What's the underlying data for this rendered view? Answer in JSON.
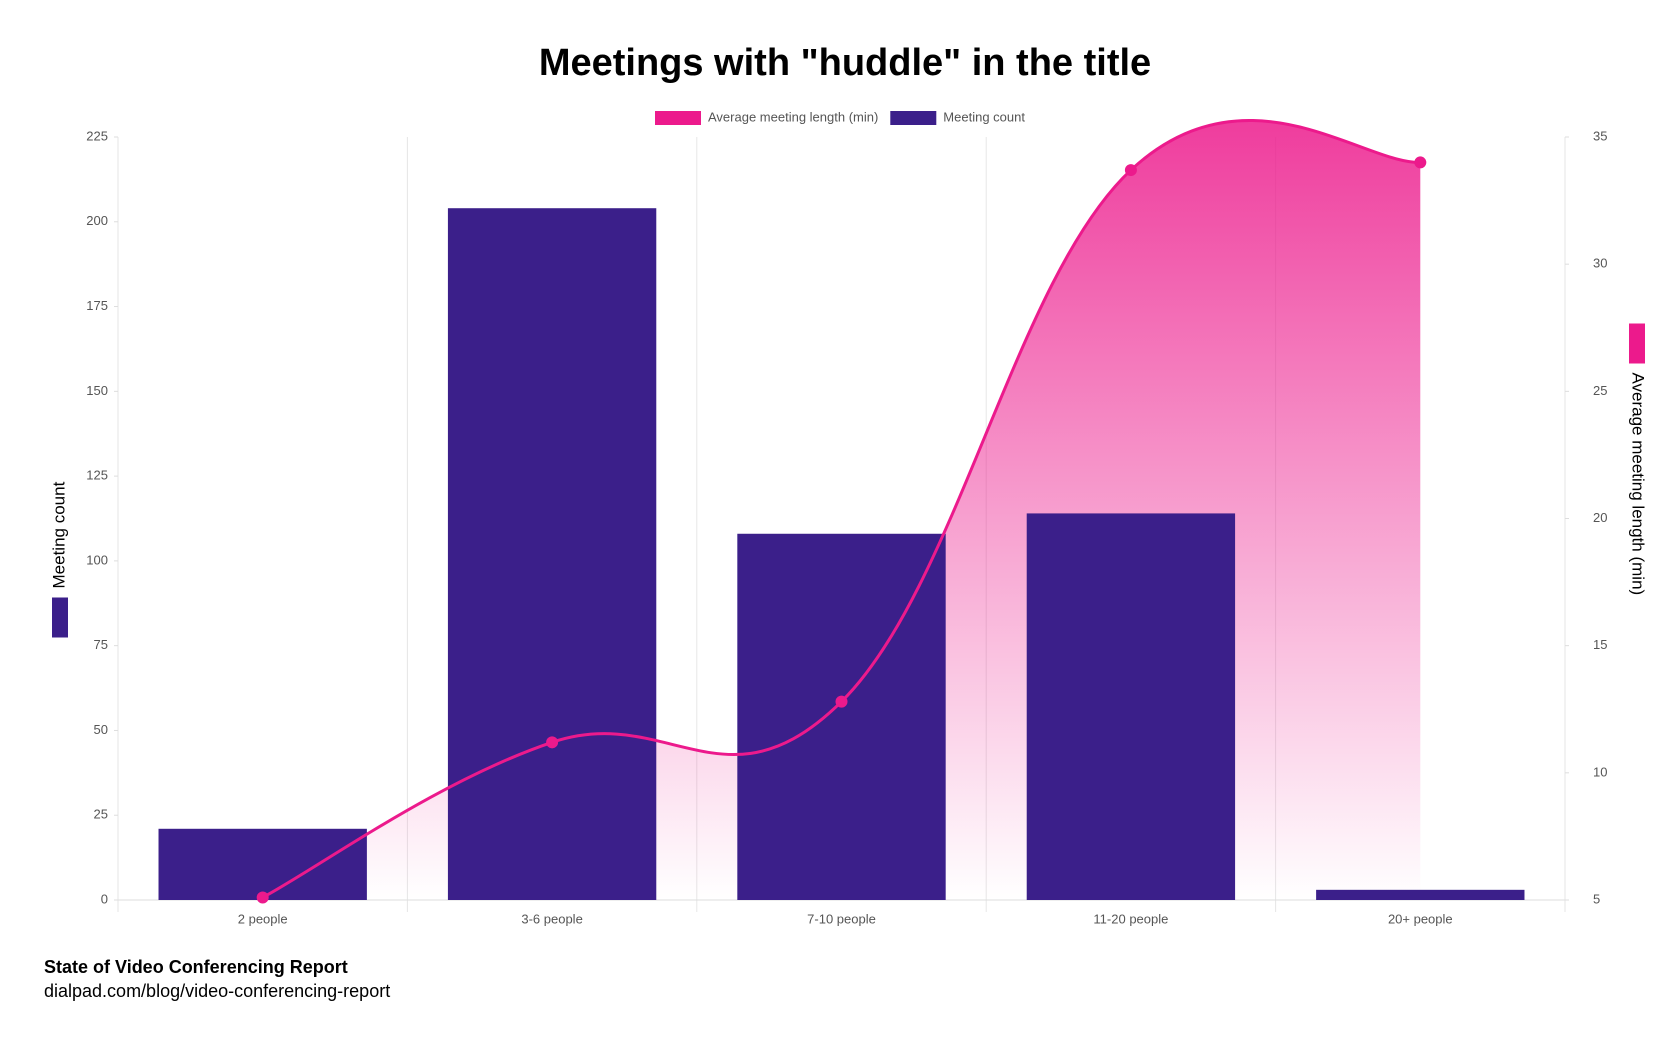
{
  "chart_data": {
    "type": "bar",
    "title": "Meetings with \"huddle\" in the title",
    "categories": [
      "2 people",
      "3-6 people",
      "7-10 people",
      "11-20 people",
      "20+ people"
    ],
    "series": [
      {
        "name": "Average meeting length (min)",
        "type": "line",
        "axis": "y2",
        "color": "#ec1a8c",
        "values": [
          5.1,
          11.2,
          12.8,
          33.7,
          34.0
        ]
      },
      {
        "name": "Meeting count",
        "type": "bar",
        "axis": "y",
        "color": "#3b1f8a",
        "values": [
          21,
          204,
          108,
          114,
          3
        ]
      }
    ],
    "y_label": "Meeting count",
    "y2_label": "Average meeting length (min)",
    "ylim": [
      0,
      225
    ],
    "yticks": [
      0,
      25,
      50,
      75,
      100,
      125,
      150,
      175,
      200,
      225
    ],
    "y2lim": [
      5,
      35
    ],
    "y2ticks": [
      5,
      10,
      15,
      20,
      25,
      30,
      35
    ],
    "legend": "top"
  },
  "footer": {
    "source": "State of Video Conferencing Report",
    "url": "dialpad.com/blog/video-conferencing-report"
  }
}
